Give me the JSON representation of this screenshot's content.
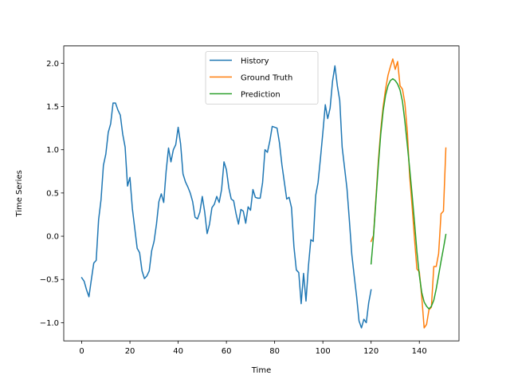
{
  "chart_data": {
    "type": "line",
    "title": "",
    "xlabel": "Time",
    "ylabel": "Time Series",
    "xlim": [
      -7.45,
      156.45
    ],
    "ylim": [
      -1.21,
      2.2
    ],
    "xticks": [
      0,
      20,
      40,
      60,
      80,
      100,
      120,
      140
    ],
    "yticks": [
      -1.0,
      -0.5,
      0.0,
      0.5,
      1.0,
      1.5,
      2.0
    ],
    "ytick_labels": [
      "−1.0",
      "−0.5",
      "0.0",
      "0.5",
      "1.0",
      "1.5",
      "2.0"
    ],
    "grid": false,
    "legend_position": "top-center",
    "series": [
      {
        "name": "History",
        "color": "#1f77b4",
        "x_start": 0,
        "values": [
          -0.48,
          -0.52,
          -0.62,
          -0.7,
          -0.5,
          -0.31,
          -0.28,
          0.19,
          0.42,
          0.82,
          0.95,
          1.2,
          1.3,
          1.54,
          1.54,
          1.46,
          1.4,
          1.18,
          1.03,
          0.58,
          0.68,
          0.32,
          0.09,
          -0.14,
          -0.19,
          -0.4,
          -0.49,
          -0.46,
          -0.4,
          -0.17,
          -0.06,
          0.14,
          0.4,
          0.49,
          0.39,
          0.75,
          1.02,
          0.86,
          1.0,
          1.06,
          1.26,
          1.07,
          0.72,
          0.63,
          0.57,
          0.5,
          0.4,
          0.22,
          0.2,
          0.28,
          0.46,
          0.28,
          0.03,
          0.14,
          0.33,
          0.37,
          0.46,
          0.39,
          0.54,
          0.86,
          0.77,
          0.56,
          0.43,
          0.41,
          0.26,
          0.14,
          0.31,
          0.29,
          0.15,
          0.34,
          0.3,
          0.54,
          0.45,
          0.44,
          0.44,
          0.62,
          1.0,
          0.97,
          1.1,
          1.27,
          1.26,
          1.25,
          1.08,
          0.83,
          0.63,
          0.43,
          0.45,
          0.33,
          -0.12,
          -0.39,
          -0.42,
          -0.78,
          -0.43,
          -0.75,
          -0.35,
          -0.04,
          -0.06,
          0.47,
          0.62,
          0.9,
          1.2,
          1.52,
          1.36,
          1.48,
          1.79,
          1.97,
          1.74,
          1.57,
          1.03,
          0.79,
          0.55,
          0.18,
          -0.21,
          -0.46,
          -0.7,
          -0.98,
          -1.06,
          -0.96,
          -1.0,
          -0.77,
          -0.62
        ]
      },
      {
        "name": "Ground Truth",
        "color": "#ff7f0e",
        "x_start": 120,
        "values": [
          -0.06,
          0.01,
          0.44,
          0.87,
          1.23,
          1.5,
          1.7,
          1.86,
          1.96,
          2.05,
          1.93,
          2.02,
          1.74,
          1.7,
          1.54,
          1.22,
          0.69,
          0.35,
          -0.03,
          -0.38,
          -0.41,
          -0.7,
          -1.06,
          -1.02,
          -0.85,
          -0.82,
          -0.35,
          -0.35,
          -0.2,
          0.26,
          0.29,
          1.02
        ]
      },
      {
        "name": "Prediction",
        "color": "#2ca02c",
        "x_start": 120,
        "values": [
          -0.32,
          0.0,
          0.41,
          0.82,
          1.18,
          1.45,
          1.63,
          1.74,
          1.8,
          1.82,
          1.8,
          1.76,
          1.69,
          1.56,
          1.33,
          1.06,
          0.78,
          0.48,
          0.16,
          -0.18,
          -0.45,
          -0.65,
          -0.76,
          -0.81,
          -0.84,
          -0.81,
          -0.74,
          -0.61,
          -0.45,
          -0.29,
          -0.14,
          0.02
        ]
      }
    ]
  }
}
